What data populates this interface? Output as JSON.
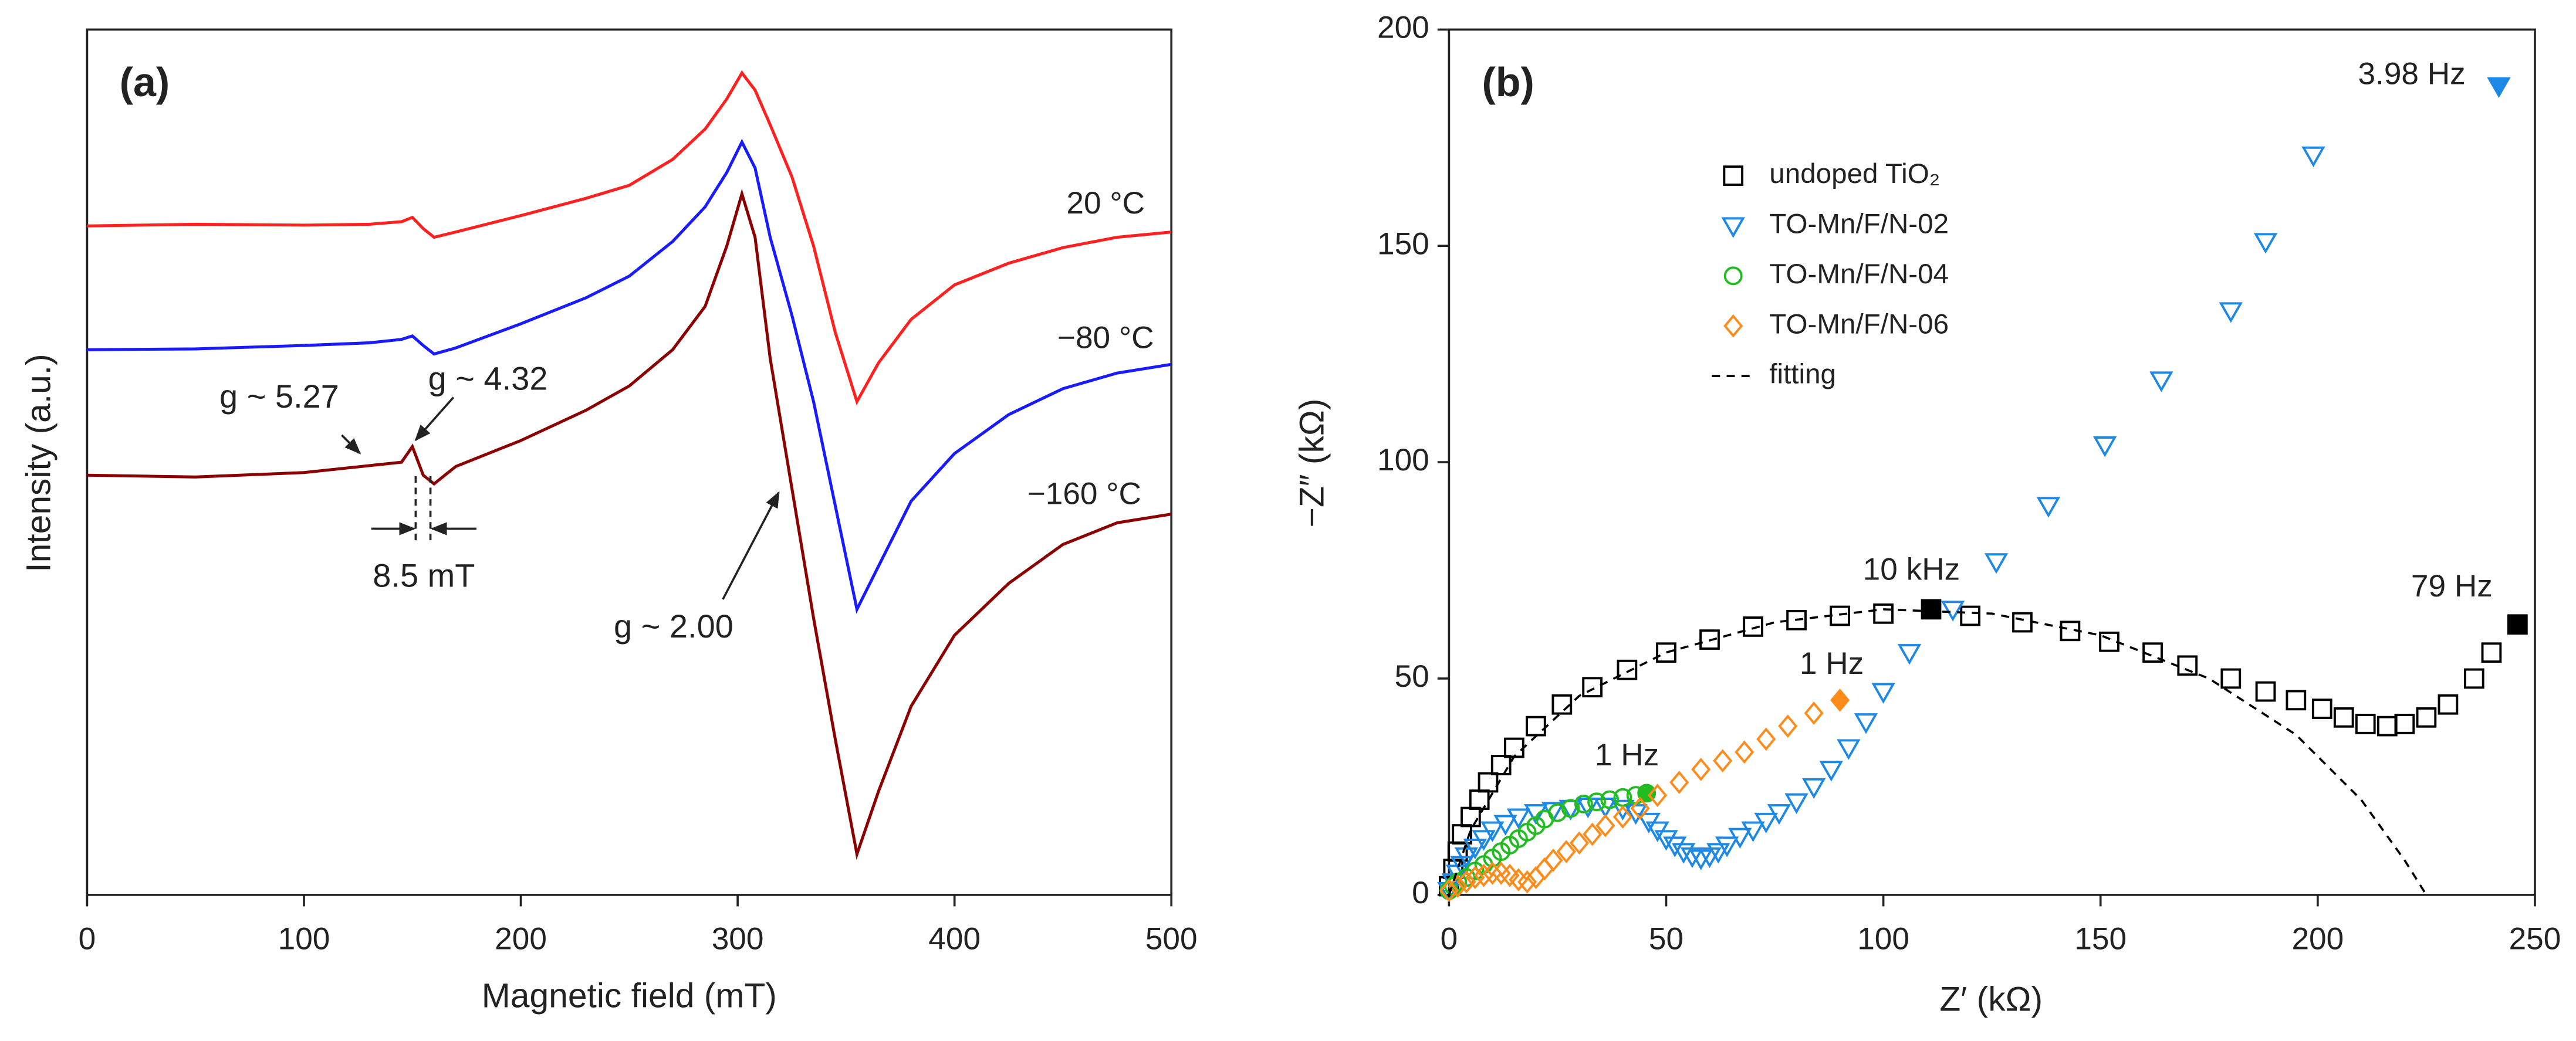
{
  "chart_data": [
    {
      "type": "line",
      "panel_label": "(a)",
      "xlabel": "Magnetic field (mT)",
      "ylabel": "Intensity (a.u.)",
      "xlim": [
        0,
        500
      ],
      "xticks": [
        0,
        100,
        200,
        300,
        400,
        500
      ],
      "ylim": [
        0,
        100
      ],
      "x": [
        0,
        50,
        100,
        130,
        145,
        150,
        155,
        160,
        170,
        200,
        230,
        250,
        270,
        285,
        295,
        302,
        308,
        315,
        325,
        335,
        345,
        355,
        365,
        380,
        400,
        425,
        450,
        475,
        500
      ],
      "series": [
        {
          "name": "20 °C",
          "color": "#ff2020",
          "values": [
            77.3,
            77.5,
            77.4,
            77.5,
            77.8,
            78.3,
            77.0,
            76.0,
            76.6,
            78.5,
            80.5,
            82.0,
            85.0,
            88.5,
            92.0,
            95.0,
            93.0,
            89.0,
            83.0,
            75.0,
            65.0,
            57.0,
            61.5,
            66.5,
            70.5,
            73.0,
            74.8,
            76.0,
            76.6
          ]
        },
        {
          "name": "−80 °C",
          "color": "#1a1aff",
          "values": [
            63.0,
            63.1,
            63.5,
            63.8,
            64.2,
            64.6,
            63.5,
            62.5,
            63.2,
            66.0,
            69.0,
            71.5,
            75.5,
            79.5,
            83.5,
            87.0,
            84.0,
            76.0,
            67.0,
            57.0,
            45.0,
            33.0,
            38.0,
            45.5,
            51.0,
            55.5,
            58.5,
            60.3,
            61.3
          ]
        },
        {
          "name": "−160 °C",
          "color": "#8b0000",
          "values": [
            48.5,
            48.3,
            48.8,
            49.6,
            50.0,
            51.8,
            48.5,
            47.5,
            49.5,
            52.5,
            56.0,
            58.8,
            63.0,
            68.0,
            75.0,
            81.0,
            76.0,
            62.0,
            47.0,
            32.0,
            18.0,
            4.7,
            12.0,
            21.8,
            30.0,
            36.0,
            40.5,
            43.0,
            44.0
          ]
        }
      ],
      "annotations": [
        {
          "text": "g ~ 5.27"
        },
        {
          "text": "g ~ 4.32"
        },
        {
          "text": "8.5 mT"
        },
        {
          "text": "g ~ 2.00"
        }
      ]
    },
    {
      "type": "scatter",
      "panel_label": "(b)",
      "xlabel": "Z′ (kΩ)",
      "ylabel": "−Z″ (kΩ)",
      "xlim": [
        0,
        250
      ],
      "xticks": [
        0,
        50,
        100,
        150,
        200,
        250
      ],
      "ylim": [
        0,
        200
      ],
      "yticks": [
        0,
        50,
        100,
        150,
        200
      ],
      "series": [
        {
          "name": "undoped TiO₂",
          "color": "#000000",
          "marker": "square",
          "x": [
            0,
            1,
            2,
            3,
            5,
            7,
            9,
            12,
            15,
            20,
            26,
            33,
            41,
            50,
            60,
            70,
            80,
            90,
            100,
            120,
            132,
            143,
            152,
            162,
            170,
            180,
            188,
            195,
            201,
            206,
            211,
            216,
            220,
            225,
            230,
            236,
            240
          ],
          "values": [
            2,
            6,
            10,
            14,
            18,
            22,
            26,
            30,
            34,
            39,
            44,
            48,
            52,
            56,
            59,
            62,
            63.5,
            64.5,
            65,
            64.5,
            63,
            61,
            58.5,
            56,
            53,
            50,
            47,
            45,
            43,
            41,
            39.5,
            39,
            39.5,
            41,
            44,
            50,
            56
          ],
          "highlights": [
            {
              "x": 111,
              "y": 66,
              "label": "10 kHz"
            },
            {
              "x": 246,
              "y": 62.5,
              "label": "79 Hz"
            }
          ]
        },
        {
          "name": "TO-Mn/F/N-02",
          "color": "#1e88e5",
          "marker": "triangle",
          "x": [
            0,
            1,
            2,
            3,
            4,
            6,
            8,
            10,
            13,
            16,
            20,
            24,
            28,
            32,
            36,
            40,
            43,
            46,
            48,
            50,
            52,
            54,
            56,
            58,
            60,
            62,
            64,
            67,
            70,
            73,
            76,
            80,
            84,
            88,
            92,
            96,
            100,
            106,
            116,
            126,
            138,
            151,
            164,
            180,
            188,
            199
          ],
          "values": [
            1,
            3,
            5,
            7,
            9,
            11,
            13,
            15,
            16.5,
            18,
            19,
            19.5,
            20,
            20.5,
            20.5,
            20,
            19,
            17,
            15,
            13,
            11.5,
            10,
            9,
            8.5,
            9,
            10,
            11.5,
            13.5,
            15,
            17,
            19,
            21.5,
            25,
            29,
            34,
            40,
            47,
            56,
            66,
            77,
            90,
            104,
            119,
            135,
            151,
            171
          ],
          "highlights": [
            {
              "x": 241.7,
              "y": 187,
              "label": "3.98 Hz"
            }
          ]
        },
        {
          "name": "TO-Mn/F/N-04",
          "color": "#22bb22",
          "marker": "circle",
          "x": [
            0,
            1,
            2,
            4,
            6,
            8,
            10,
            12,
            14,
            16,
            18,
            20,
            22,
            25,
            28,
            31,
            34,
            37,
            40,
            43
          ],
          "values": [
            1,
            2,
            3,
            4,
            5.5,
            7,
            8.5,
            10,
            11.5,
            13,
            14.5,
            16,
            17.5,
            19,
            20,
            21,
            21.5,
            22,
            22.5,
            23
          ],
          "highlights": [
            {
              "x": 45.5,
              "y": 23.5,
              "label": "1 Hz"
            }
          ]
        },
        {
          "name": "TO-Mn/F/N-06",
          "color": "#ff8c1a",
          "marker": "diamond",
          "x": [
            0,
            2,
            4,
            6,
            8,
            10,
            12,
            14,
            16,
            18,
            20,
            22,
            24,
            27,
            30,
            33,
            36,
            40,
            44,
            48,
            53,
            58,
            63,
            68,
            73,
            78,
            84
          ],
          "values": [
            1,
            2,
            3,
            4,
            4.5,
            5,
            5,
            4.5,
            3.5,
            3,
            4,
            6,
            8,
            10,
            12,
            14,
            16,
            18,
            20,
            23,
            26,
            29,
            31,
            33,
            36,
            39,
            42
          ],
          "highlights": [
            {
              "x": 90,
              "y": 45,
              "label": "1 Hz"
            }
          ]
        },
        {
          "name": "fitting",
          "color": "#000000",
          "marker": "dashed-line",
          "x": [
            0,
            5,
            15,
            30,
            50,
            75,
            100,
            125,
            150,
            175,
            195,
            210,
            220,
            225
          ],
          "values": [
            0,
            15,
            32,
            46,
            56,
            63,
            66,
            65,
            60,
            50,
            37,
            22,
            8,
            0
          ]
        }
      ]
    }
  ]
}
